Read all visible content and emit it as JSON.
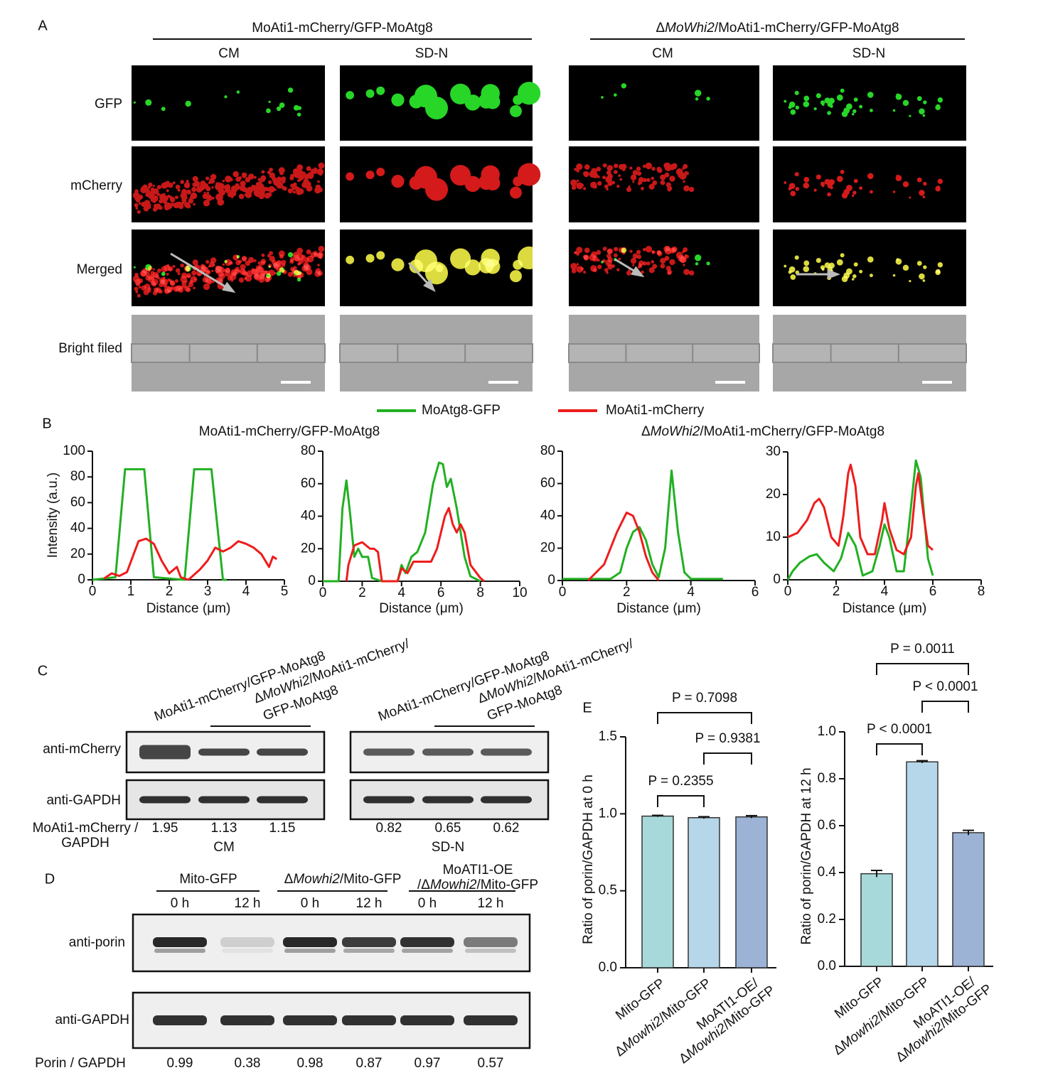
{
  "panel_a": {
    "label": "A",
    "groups": [
      {
        "title": "MoAti1-mCherry/GFP-MoAtg8",
        "conditions": [
          "CM",
          "SD-N"
        ]
      },
      {
        "title": [
          "Δ",
          "MoWhi2",
          "/MoAti1-mCherry/GFP-MoAtg8"
        ],
        "conditions": [
          "CM",
          "SD-N"
        ]
      }
    ],
    "rows": [
      "GFP",
      "mCherry",
      "Merged",
      "Bright filed"
    ]
  },
  "panel_b": {
    "label": "B",
    "legend": [
      {
        "name": "MoAtg8-GFP",
        "color": "#22b022"
      },
      {
        "name": "MoAti1-mCherry",
        "color": "#ee1c1c"
      }
    ],
    "group_titles": [
      "MoAti1-mCherry/GFP-MoAtg8",
      [
        "Δ",
        "MoWhi2",
        "/MoAti1-mCherry/GFP-MoAtg8"
      ]
    ],
    "y_label": "Intensity (a.u.)",
    "x_label": "Distance (μm)",
    "charts": [
      {
        "type": "line",
        "xlim": [
          0,
          5
        ],
        "xticks": [
          0,
          1,
          2,
          3,
          4,
          5
        ],
        "ylim": [
          0,
          100
        ],
        "yticks": [
          0,
          20,
          40,
          60,
          80,
          100
        ],
        "series": [
          {
            "x": [
              0,
              0.6,
              0.85,
              1.35,
              1.6,
              2.4,
              2.65,
              3.1,
              3.4,
              3.5
            ],
            "values": [
              0,
              2,
              86,
              86,
              2,
              0,
              86,
              86,
              0,
              0
            ]
          },
          {
            "x": [
              0.3,
              0.5,
              0.7,
              0.9,
              1.2,
              1.4,
              1.6,
              1.8,
              2.0,
              2.2,
              2.3,
              2.5,
              2.8,
              3.0,
              3.2,
              3.4,
              3.6,
              3.8,
              4.0,
              4.2,
              4.4,
              4.6,
              4.7,
              4.8
            ],
            "values": [
              1,
              5,
              3,
              6,
              30,
              32,
              28,
              15,
              5,
              10,
              2,
              0,
              8,
              15,
              25,
              22,
              25,
              30,
              28,
              25,
              20,
              10,
              18,
              16
            ]
          }
        ]
      },
      {
        "type": "line",
        "xlim": [
          0,
          10
        ],
        "xticks": [
          0,
          2,
          4,
          6,
          8,
          10
        ],
        "ylim": [
          0,
          80
        ],
        "yticks": [
          0,
          20,
          40,
          60,
          80
        ],
        "series": [
          {
            "x": [
              0,
              0.8,
              1.0,
              1.2,
              1.4,
              1.6,
              1.8,
              2.0,
              2.3,
              2.5,
              3.0,
              3.8,
              4.0,
              4.2,
              4.5,
              4.8,
              5.2,
              5.6,
              5.9,
              6.1,
              6.3,
              6.5,
              6.8,
              7.2,
              7.5,
              8.0
            ],
            "values": [
              0,
              0,
              45,
              62,
              40,
              15,
              20,
              15,
              15,
              2,
              0,
              0,
              10,
              5,
              15,
              18,
              30,
              60,
              73,
              72,
              58,
              63,
              45,
              15,
              3,
              0
            ]
          },
          {
            "x": [
              1.2,
              1.3,
              1.6,
              2.0,
              2.4,
              2.6,
              2.8,
              3.0,
              3.8,
              4.0,
              4.3,
              4.6,
              5.0,
              5.5,
              5.8,
              6.2,
              6.4,
              6.6,
              6.8,
              7.0,
              7.2,
              7.5,
              8.0,
              8.2
            ],
            "values": [
              0,
              10,
              22,
              24,
              20,
              20,
              18,
              0,
              0,
              8,
              5,
              12,
              12,
              12,
              20,
              40,
              45,
              35,
              30,
              35,
              30,
              10,
              2,
              0
            ]
          }
        ]
      },
      {
        "type": "line",
        "xlim": [
          0,
          6
        ],
        "xticks": [
          0,
          2,
          4,
          6
        ],
        "ylim": [
          0,
          80
        ],
        "yticks": [
          0,
          20,
          40,
          60,
          80
        ],
        "series": [
          {
            "x": [
              0,
              1.5,
              1.8,
              2.0,
              2.2,
              2.4,
              2.6,
              2.8,
              3.0,
              3.2,
              3.4,
              3.6,
              3.8,
              4.0,
              5.0
            ],
            "values": [
              1,
              1,
              5,
              20,
              30,
              33,
              25,
              10,
              2,
              20,
              68,
              30,
              5,
              1,
              1
            ]
          },
          {
            "x": [
              0.8,
              1.3,
              1.7,
              2.0,
              2.2,
              2.4,
              2.6,
              2.8,
              3.0
            ],
            "values": [
              0,
              10,
              30,
              42,
              40,
              30,
              15,
              5,
              0
            ]
          }
        ]
      },
      {
        "type": "line",
        "xlim": [
          0,
          8
        ],
        "xticks": [
          0,
          2,
          4,
          6,
          8
        ],
        "ylim": [
          0,
          30
        ],
        "yticks": [
          0,
          10,
          20,
          30
        ],
        "series": [
          {
            "x": [
              0,
              0.2,
              0.5,
              0.9,
              1.2,
              1.5,
              1.9,
              2.2,
              2.5,
              2.8,
              3.1,
              3.5,
              3.8,
              4.0,
              4.2,
              4.5,
              4.8,
              5.0,
              5.3,
              5.5,
              5.8,
              6.0
            ],
            "values": [
              0,
              2,
              4,
              5.5,
              6,
              4,
              2,
              5,
              11,
              8,
              1,
              2,
              8,
              13,
              10,
              2,
              2,
              12,
              28,
              24,
              5,
              1
            ]
          },
          {
            "x": [
              0,
              0.4,
              0.8,
              1.1,
              1.3,
              1.5,
              1.8,
              2.1,
              2.3,
              2.5,
              2.6,
              2.8,
              3.0,
              3.3,
              3.6,
              3.9,
              4.0,
              4.2,
              4.5,
              4.8,
              5.1,
              5.3,
              5.4,
              5.6,
              5.8,
              6.0
            ],
            "values": [
              10,
              11,
              14,
              18,
              19,
              17,
              10,
              8,
              15,
              25,
              27,
              22,
              10,
              6,
              6,
              14,
              18,
              12,
              7,
              6,
              10,
              22,
              25,
              16,
              8,
              7
            ]
          }
        ]
      }
    ]
  },
  "panel_c": {
    "label": "C",
    "lanes": [
      "MoAti1-mCherry/GFP-MoAtg8",
      {
        "lines": [
          [
            "Δ",
            "MoWhi2",
            "/MoAti1-mCherry/"
          ],
          "GFP-MoAtg8"
        ]
      }
    ],
    "rows": [
      "anti-mCherry",
      "anti-GAPDH"
    ],
    "ratio_label": {
      "lines": [
        "MoAti1-mCherry /",
        "GAPDH"
      ]
    },
    "blots": [
      {
        "condition": "CM",
        "ratios": [
          1.95,
          1.13,
          1.15
        ]
      },
      {
        "condition": "SD-N",
        "ratios": [
          0.82,
          0.65,
          0.62
        ]
      }
    ]
  },
  "panel_d": {
    "label": "D",
    "groups": [
      "Mito-GFP",
      [
        "Δ",
        "Mowhi2",
        "/Mito-GFP"
      ],
      {
        "lines": [
          "MoATI1-OE",
          [
            "/Δ",
            "Mowhi2",
            "/Mito-GFP"
          ]
        ]
      }
    ],
    "times": [
      "0 h",
      "12 h"
    ],
    "rows": [
      "anti-porin",
      "anti-GAPDH"
    ],
    "ratio_label": "Porin / GAPDH",
    "ratios": [
      0.99,
      0.38,
      0.98,
      0.87,
      0.97,
      0.57
    ]
  },
  "panel_e": {
    "label": "E",
    "charts": [
      {
        "type": "bar",
        "y_label": "Ratio of porin/GAPDH at 0 h",
        "categories": [
          "Mito-GFP",
          [
            "Δ",
            "Mowhi2",
            "/Mito-GFP"
          ],
          {
            "lines": [
              "MoATI1-OE/",
              [
                "Δ",
                "Mowhi2",
                "/Mito-GFP"
              ]
            ]
          }
        ],
        "values": [
          0.985,
          0.975,
          0.98
        ],
        "errors": [
          0.005,
          0.006,
          0.008
        ],
        "colors": [
          "#a8d9da",
          "#b6d7e9",
          "#9cb3d6"
        ],
        "ylim": [
          0,
          1.5
        ],
        "yticks": [
          {
            "value": 0,
            "label": "0.0"
          },
          {
            "value": 0.5,
            "label": "0.5"
          },
          {
            "value": 1,
            "label": "1.0"
          },
          {
            "value": 1.5,
            "label": "1.5"
          }
        ],
        "comparisons": [
          {
            "pair": [
              0,
              1
            ],
            "label": "P = 0.2355"
          },
          {
            "pair": [
              1,
              2
            ],
            "label": "P = 0.9381"
          },
          {
            "pair": [
              0,
              2
            ],
            "label": "P = 0.7098"
          }
        ]
      },
      {
        "type": "bar",
        "y_label": "Ratio of porin/GAPDH at 12 h",
        "categories": [
          "Mito-GFP",
          [
            "Δ",
            "Mowhi2",
            "/Mito-GFP"
          ],
          {
            "lines": [
              "MoATI1-OE/",
              [
                "Δ",
                "Mowhi2",
                "/Mito-GFP"
              ]
            ]
          }
        ],
        "values": [
          0.395,
          0.872,
          0.57
        ],
        "errors": [
          0.014,
          0.005,
          0.01
        ],
        "colors": [
          "#a8d9da",
          "#b6d7e9",
          "#9cb3d6"
        ],
        "ylim": [
          0,
          1
        ],
        "yticks": [
          {
            "value": 0,
            "label": "0.0"
          },
          {
            "value": 0.2,
            "label": "0.2"
          },
          {
            "value": 0.4,
            "label": "0.4"
          },
          {
            "value": 0.6,
            "label": "0.6"
          },
          {
            "value": 0.8,
            "label": "0.8"
          },
          {
            "value": 1,
            "label": "1.0"
          }
        ],
        "comparisons": [
          {
            "pair": [
              0,
              1
            ],
            "label": "P < 0.0001"
          },
          {
            "pair": [
              1,
              2
            ],
            "label": "P < 0.0001"
          },
          {
            "pair": [
              0,
              2
            ],
            "label": "P = 0.0011"
          }
        ]
      }
    ]
  }
}
